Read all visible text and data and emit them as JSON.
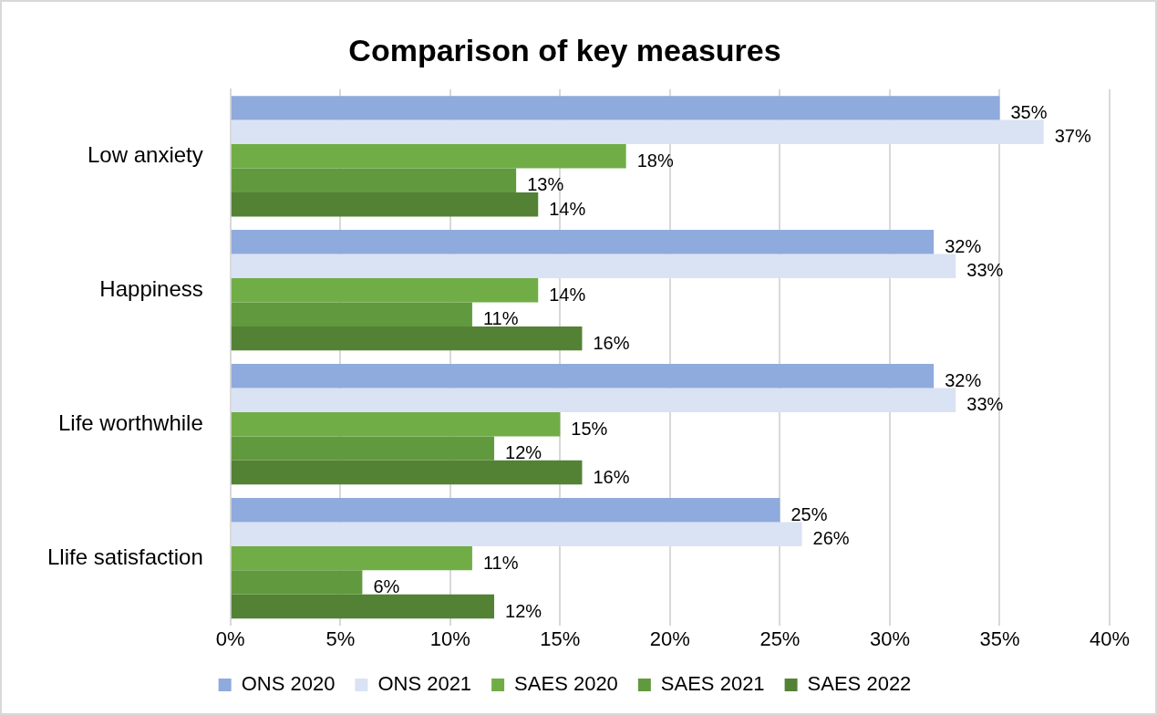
{
  "chart_data": {
    "type": "bar",
    "orientation": "horizontal",
    "title": "Comparison of key measures",
    "categories": [
      "Low anxiety",
      "Happiness",
      "Life worthwhile",
      "Llife satisfaction"
    ],
    "series": [
      {
        "name": "ONS 2020",
        "color": "#8faadc",
        "values": [
          35,
          32,
          32,
          25
        ],
        "value_labels": [
          "35%",
          "32%",
          "32%",
          "25%"
        ]
      },
      {
        "name": "ONS 2021",
        "color": "#dae3f3",
        "values": [
          37,
          33,
          33,
          26
        ],
        "value_labels": [
          "37%",
          "33%",
          "33%",
          "26%"
        ]
      },
      {
        "name": "SAES 2020",
        "color": "#70ad47",
        "values": [
          18,
          14,
          15,
          11
        ],
        "value_labels": [
          "18%",
          "14%",
          "15%",
          "11%"
        ]
      },
      {
        "name": "SAES 2021",
        "color": "#619a3e",
        "values": [
          13,
          11,
          12,
          6
        ],
        "value_labels": [
          "13%",
          "11%",
          "12%",
          "6%"
        ]
      },
      {
        "name": "SAES 2022",
        "color": "#548235",
        "values": [
          14,
          16,
          16,
          12
        ],
        "value_labels": [
          "14%",
          "16%",
          "16%",
          "12%"
        ]
      }
    ],
    "xlim": [
      0,
      40
    ],
    "xticks": [
      {
        "value": 0,
        "label": "0%"
      },
      {
        "value": 5,
        "label": "5%"
      },
      {
        "value": 10,
        "label": "10%"
      },
      {
        "value": 15,
        "label": "15%"
      },
      {
        "value": 20,
        "label": "20%"
      },
      {
        "value": 25,
        "label": "25%"
      },
      {
        "value": 30,
        "label": "30%"
      },
      {
        "value": 35,
        "label": "35%"
      },
      {
        "value": 40,
        "label": "40%"
      }
    ],
    "grid": "x",
    "legend": "bottom"
  }
}
